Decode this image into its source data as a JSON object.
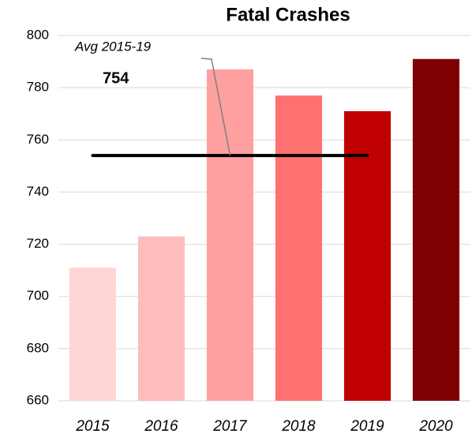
{
  "chart_data": {
    "type": "bar",
    "title": "Fatal Crashes",
    "categories": [
      "2015",
      "2016",
      "2017",
      "2018",
      "2019",
      "2020"
    ],
    "values": [
      711,
      723,
      787,
      777,
      771,
      791
    ],
    "colors": [
      "#ffd5d5",
      "#ffbcbc",
      "#ffa0a0",
      "#ff7070",
      "#c00000",
      "#7f0000"
    ],
    "ylim": [
      660,
      800
    ],
    "yticks": [
      660,
      680,
      700,
      720,
      740,
      760,
      780,
      800
    ],
    "grid": true,
    "average": {
      "label": "Avg 2015-19",
      "value": 754
    }
  }
}
